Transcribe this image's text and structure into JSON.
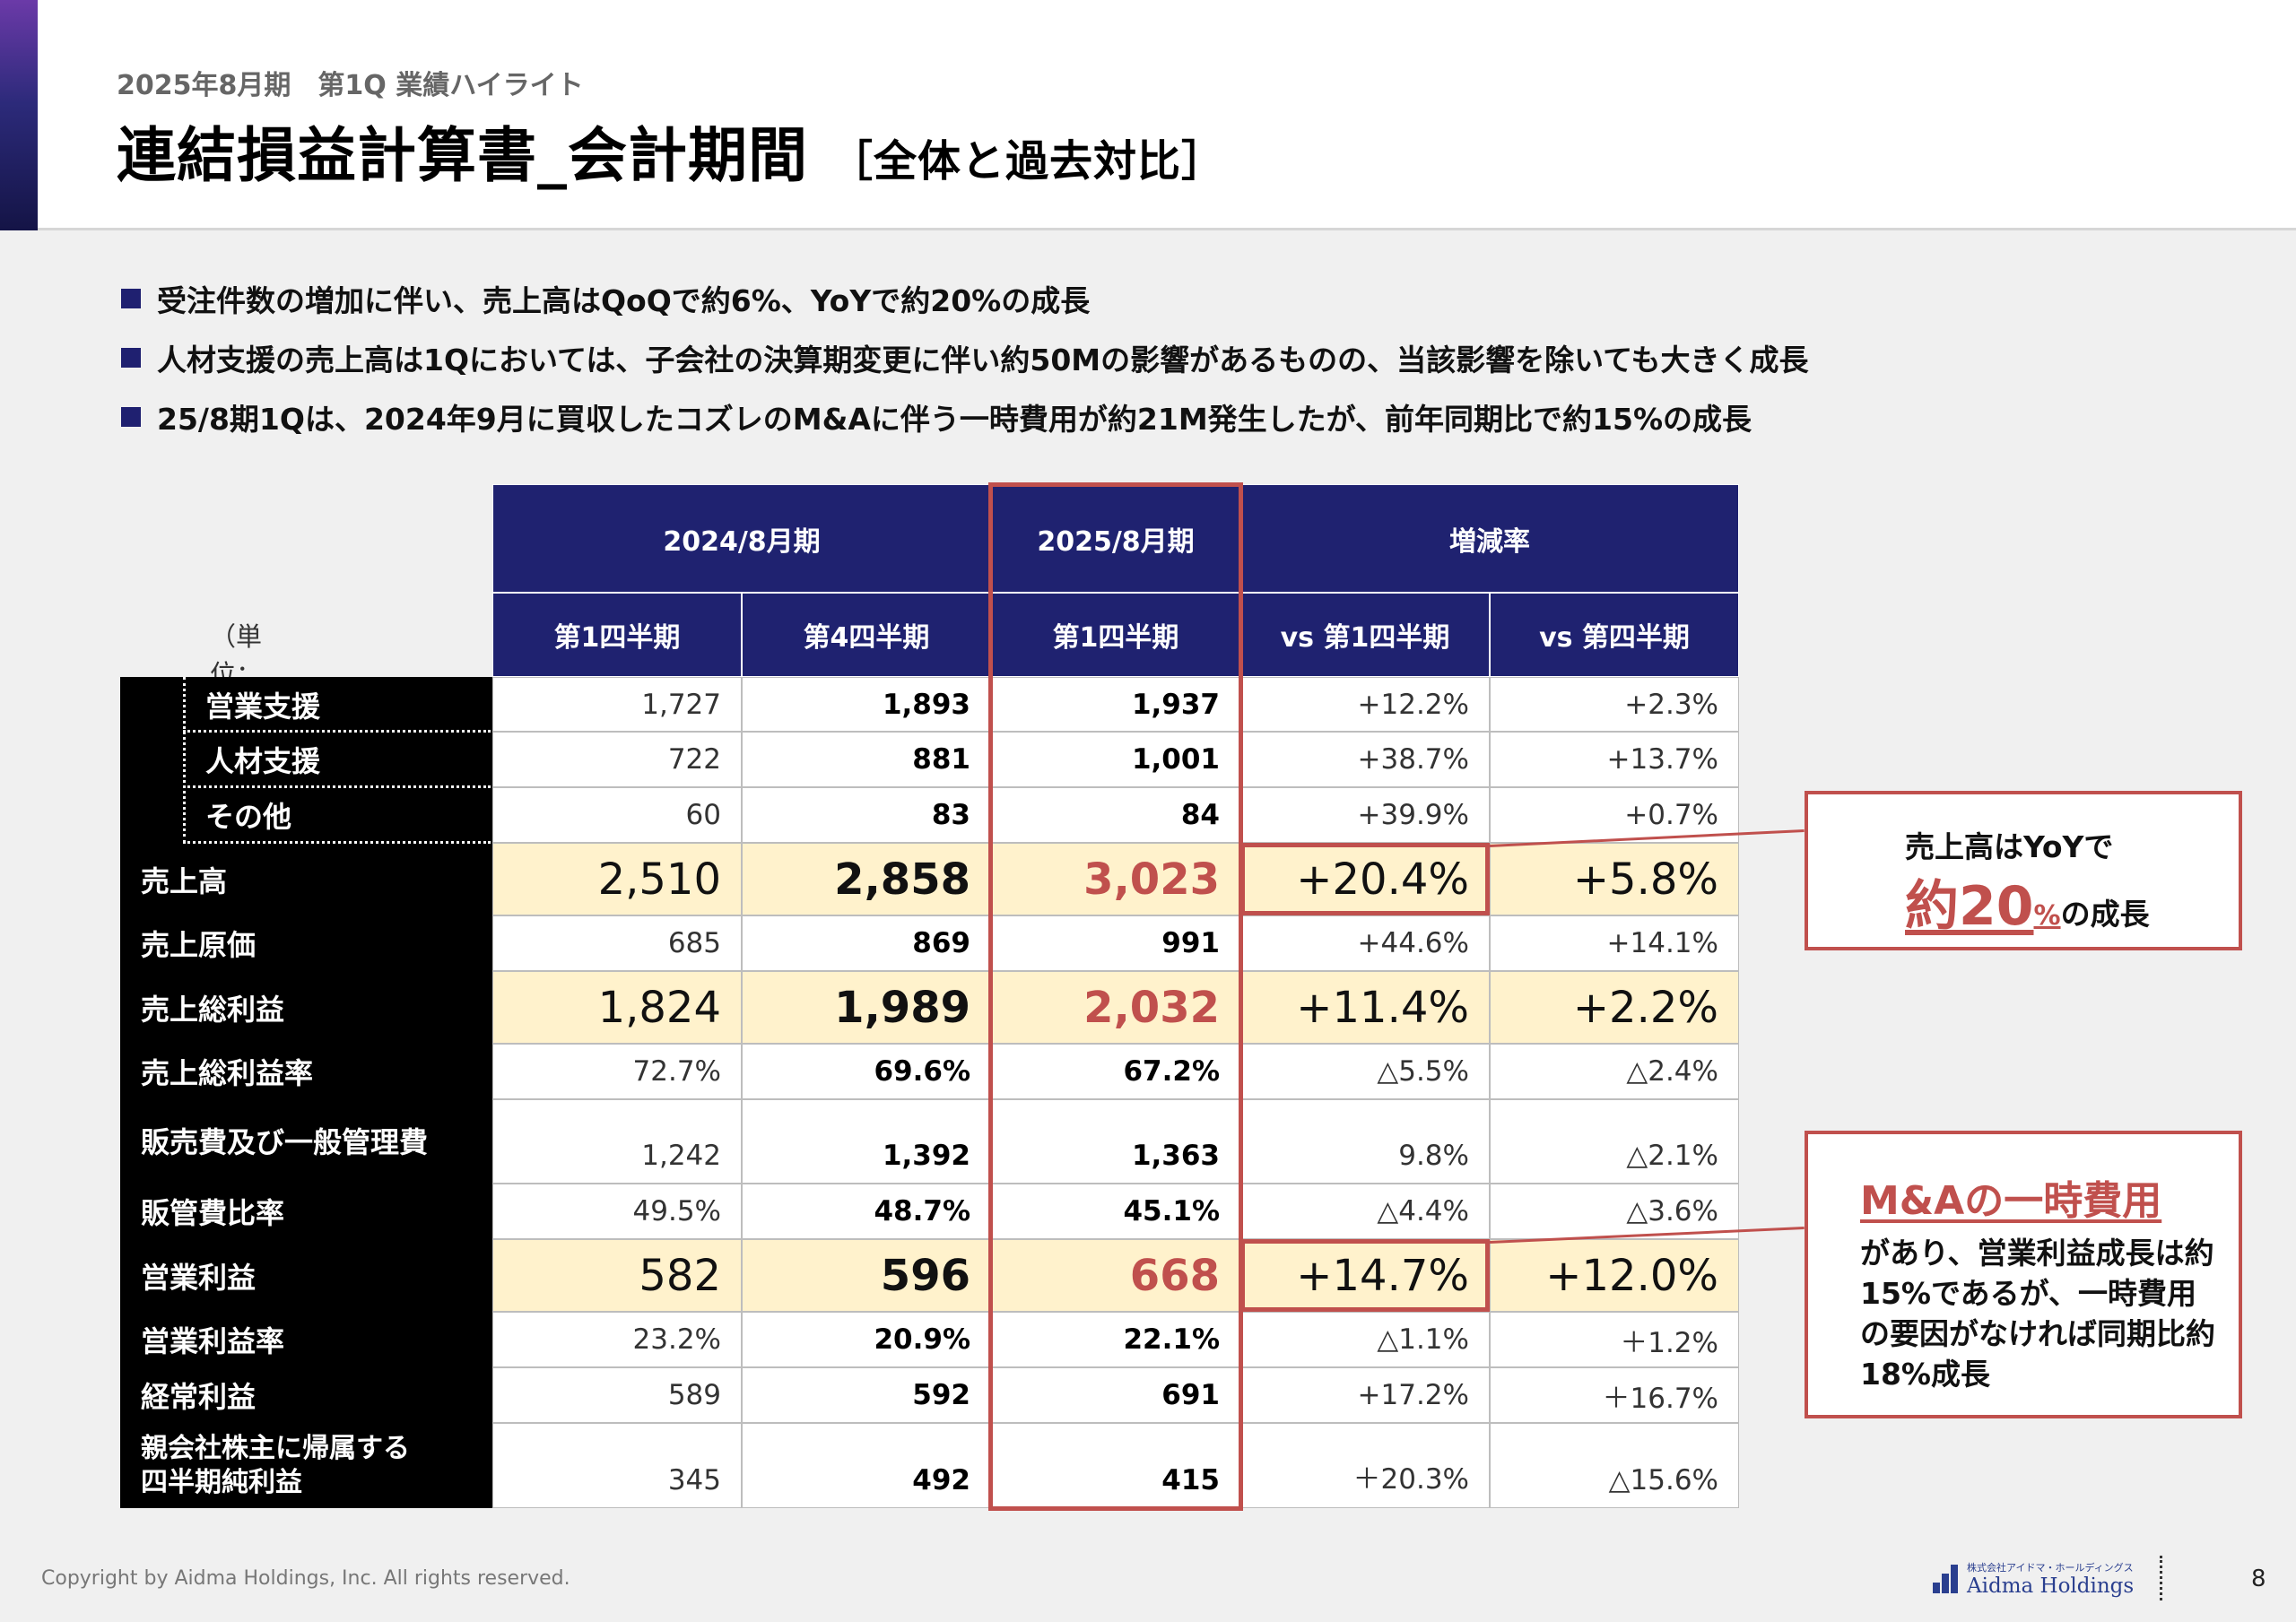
{
  "header": {
    "subtitle": "2025年8月期　第1Q 業績ハイライト",
    "title": "連結損益計算書_会計期間",
    "title_sub": "［全体と過去対比］"
  },
  "bullets": [
    "受注件数の増加に伴い、売上高はQoQで約6%、YoYで約20%の成長",
    "人材支援の売上高は1Qにおいては、子会社の決算期変更に伴い約50Mの影響があるものの、当該影響を除いても大きく成長",
    "25/8期1Qは、2024年9月に買収したコズレのM&Aに伴う一時費用が約21M発生したが、前年同期比で約15%の成長"
  ],
  "table": {
    "unit": "（単位：百万円）",
    "group_headers": [
      "2024/8月期",
      "2025/8月期",
      "増減率"
    ],
    "sub_headers": [
      "第1四半期",
      "第4四半期",
      "第1四半期",
      "vs 第1四半期",
      "vs 第四半期"
    ],
    "rows": [
      {
        "label": "営業支援",
        "values": [
          "1,727",
          "1,893",
          "1,937",
          "+12.2%",
          "+2.3%"
        ]
      },
      {
        "label": "人材支援",
        "values": [
          "722",
          "881",
          "1,001",
          "+38.7%",
          "+13.7%"
        ]
      },
      {
        "label": "その他",
        "values": [
          "60",
          "83",
          "84",
          "+39.9%",
          "+0.7%"
        ]
      },
      {
        "label": "売上高",
        "values": [
          "2,510",
          "2,858",
          "3,023",
          "+20.4%",
          "+5.8%"
        ]
      },
      {
        "label": "売上原価",
        "values": [
          "685",
          "869",
          "991",
          "+44.6%",
          "+14.1%"
        ]
      },
      {
        "label": "売上総利益",
        "values": [
          "1,824",
          "1,989",
          "2,032",
          "+11.4%",
          "+2.2%"
        ]
      },
      {
        "label": "売上総利益率",
        "values": [
          "72.7%",
          "69.6%",
          "67.2%",
          "△5.5%",
          "△2.4%"
        ]
      },
      {
        "label": "販売費及び一般管理費",
        "values": [
          "1,242",
          "1,392",
          "1,363",
          "9.8%",
          "△2.1%"
        ]
      },
      {
        "label": "販管費比率",
        "values": [
          "49.5%",
          "48.7%",
          "45.1%",
          "△4.4%",
          "△3.6%"
        ]
      },
      {
        "label": "営業利益",
        "values": [
          "582",
          "596",
          "668",
          "+14.7%",
          "+12.0%"
        ]
      },
      {
        "label": "営業利益率",
        "values": [
          "23.2%",
          "20.9%",
          "22.1%",
          "△1.1%",
          "＋1.2%"
        ]
      },
      {
        "label": "経常利益",
        "values": [
          "589",
          "592",
          "691",
          "+17.2%",
          "＋16.7%"
        ]
      },
      {
        "label": "親会社株主に帰属する\n四半期純利益",
        "values": [
          "345",
          "492",
          "415",
          "＋20.3%",
          "△15.6%"
        ]
      }
    ]
  },
  "callout_sales": {
    "line1": "売上高はYoYで",
    "big": "約20",
    "unit": "%",
    "tail": "の成長"
  },
  "callout_ma": {
    "head": "M&Aの一時費用",
    "body": "があり、営業利益成長は約15%であるが、一時費用の要因がなければ同期比約18%成長"
  },
  "footer": {
    "copyright": "Copyright by Aidma Holdings, Inc. All rights reserved.",
    "logo_small": "株式会社アイドマ・ホールディングス",
    "logo_main": "Aidma Holdings",
    "page": "8"
  },
  "colors": {
    "header_navy": "#1f2270",
    "highlight": "#fff2cc",
    "accent_red": "#c0504d",
    "label_black": "#000000"
  }
}
